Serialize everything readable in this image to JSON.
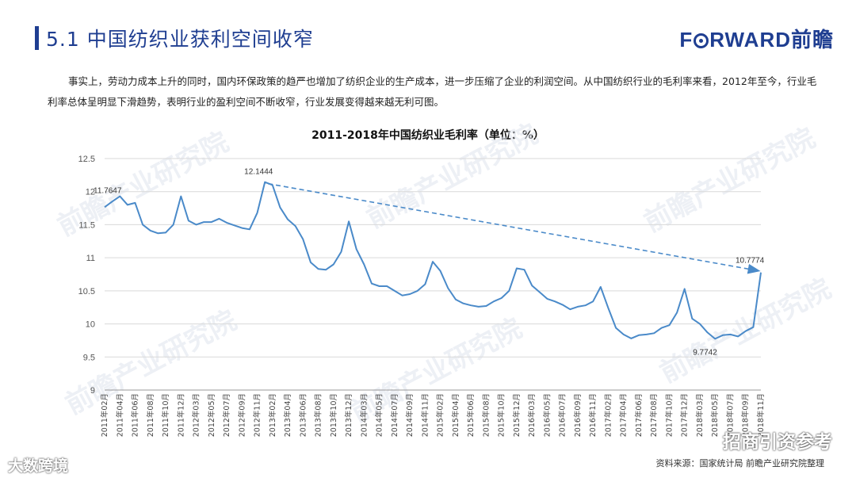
{
  "header": {
    "title": "5.1 中国纺织业获利空间收窄",
    "logo_prefix": "F",
    "logo_suffix": "RWARD前瞻"
  },
  "paragraph": "事实上，劳动力成本上升的同时，国内环保政策的趋严也增加了纺织企业的生产成本，进一步压缩了企业的利润空间。从中国纺织行业的毛利率来看，2012年至今，行业毛利率总体呈明显下滑趋势，表明行业的盈利空间不断收窄，行业发展变得越来越无利可图。",
  "watermark_text": "前瞻产业研究院",
  "source_note": "资料来源：国家统计局  前瞻产业研究院整理",
  "bottom_left_watermark": "大数跨境",
  "bottom_right_watermark": "招商引资参考",
  "colors": {
    "brand": "#1f3e91",
    "line": "#4a8ac9",
    "grid": "#d9d9d9"
  },
  "chart_data": {
    "type": "line",
    "title": "2011-2018年中国纺织业毛利率（单位：%）",
    "xlabel": "",
    "ylabel": "",
    "ylim": [
      9,
      12.5
    ],
    "yticks": [
      9,
      9.5,
      10,
      10.5,
      11,
      11.5,
      12,
      12.5
    ],
    "grid": true,
    "x": [
      "2011年02月",
      "2011年03月",
      "2011年04月",
      "2011年05月",
      "2011年06月",
      "2011年07月",
      "2011年08月",
      "2011年09月",
      "2011年10月",
      "2011年11月",
      "2011年12月",
      "2012年02月",
      "2012年03月",
      "2012年04月",
      "2012年05月",
      "2012年06月",
      "2012年07月",
      "2012年08月",
      "2012年09月",
      "2012年10月",
      "2012年11月",
      "2012年12月",
      "2013年02月",
      "2013年03月",
      "2013年04月",
      "2013年05月",
      "2013年06月",
      "2013年07月",
      "2013年08月",
      "2013年09月",
      "2013年10月",
      "2013年11月",
      "2013年12月",
      "2014年02月",
      "2014年03月",
      "2014年04月",
      "2014年05月",
      "2014年06月",
      "2014年07月",
      "2014年08月",
      "2014年09月",
      "2014年10月",
      "2014年11月",
      "2014年12月",
      "2015年02月",
      "2015年03月",
      "2015年04月",
      "2015年05月",
      "2015年06月",
      "2015年07月",
      "2015年08月",
      "2015年09月",
      "2015年10月",
      "2015年11月",
      "2015年12月",
      "2016年02月",
      "2016年03月",
      "2016年04月",
      "2016年05月",
      "2016年06月",
      "2016年07月",
      "2016年08月",
      "2016年09月",
      "2016年10月",
      "2016年11月",
      "2016年12月",
      "2017年02月",
      "2017年03月",
      "2017年04月",
      "2017年05月",
      "2017年06月",
      "2017年07月",
      "2017年08月",
      "2017年09月",
      "2017年10月",
      "2017年11月",
      "2017年12月",
      "2018年02月",
      "2018年03月",
      "2018年04月",
      "2018年05月",
      "2018年06月",
      "2018年07月",
      "2018年08月",
      "2018年09月",
      "2018年10月",
      "2018年11月"
    ],
    "xtick_labels": [
      "2011年02月",
      "2011年04月",
      "2011年06月",
      "2011年08月",
      "2011年10月",
      "2011年12月",
      "2012年03月",
      "2012年05月",
      "2012年07月",
      "2012年09月",
      "2012年11月",
      "2013年02月",
      "2013年04月",
      "2013年06月",
      "2013年08月",
      "2013年10月",
      "2013年12月",
      "2014年03月",
      "2014年05月",
      "2014年07月",
      "2014年09月",
      "2014年11月",
      "2015年02月",
      "2015年04月",
      "2015年06月",
      "2015年08月",
      "2015年10月",
      "2015年12月",
      "2016年03月",
      "2016年05月",
      "2016年07月",
      "2016年09月",
      "2016年11月",
      "2017年02月",
      "2017年04月",
      "2017年06月",
      "2017年08月",
      "2017年10月",
      "2017年12月",
      "2018年03月",
      "2018年05月",
      "2018年07月",
      "2018年09月",
      "2018年11月"
    ],
    "series": [
      {
        "values": [
          11.7647,
          11.85,
          11.93,
          11.8,
          11.83,
          11.5,
          11.41,
          11.37,
          11.38,
          11.5,
          11.93,
          11.56,
          11.5,
          11.54,
          11.54,
          11.59,
          11.53,
          11.49,
          11.45,
          11.43,
          11.68,
          12.1444,
          12.1,
          11.76,
          11.58,
          11.48,
          11.28,
          10.93,
          10.83,
          10.82,
          10.9,
          11.09,
          11.55,
          11.13,
          10.9,
          10.61,
          10.57,
          10.57,
          10.5,
          10.43,
          10.45,
          10.5,
          10.6,
          10.94,
          10.8,
          10.54,
          10.37,
          10.31,
          10.28,
          10.26,
          10.27,
          10.34,
          10.39,
          10.5,
          10.84,
          10.82,
          10.58,
          10.48,
          10.38,
          10.34,
          10.29,
          10.22,
          10.26,
          10.28,
          10.34,
          10.56,
          10.24,
          9.94,
          9.84,
          9.78,
          9.83,
          9.84,
          9.86,
          9.94,
          9.98,
          10.17,
          10.53,
          10.08,
          10.0,
          9.87,
          9.7742,
          9.83,
          9.84,
          9.81,
          9.89,
          9.95,
          10.7774
        ]
      }
    ],
    "annotations": [
      {
        "text": "11.7647",
        "x": "2011年02月",
        "y": 11.7647
      },
      {
        "text": "12.1444",
        "x": "2012年12月",
        "y": 12.1444
      },
      {
        "text": "9.7742",
        "x": "2018年05月",
        "y": 9.7742
      },
      {
        "text": "10.7774",
        "x": "2018年11月",
        "y": 10.7774
      }
    ],
    "trend_arrow": {
      "from": {
        "x": "2012年12月",
        "y": 12.1444
      },
      "to": {
        "x": "2018年11月",
        "y": 10.7774
      }
    }
  }
}
